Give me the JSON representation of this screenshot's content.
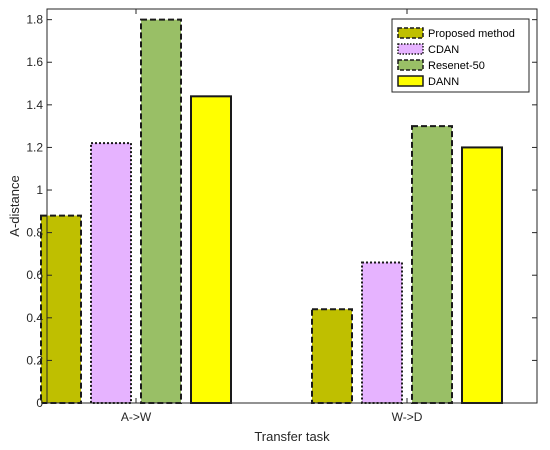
{
  "chart_data": {
    "type": "bar",
    "xlabel": "Transfer task",
    "ylabel": "A-distance",
    "categories": [
      "A->W",
      "W->D"
    ],
    "series": [
      {
        "name": "Proposed method",
        "values": [
          0.88,
          0.44
        ],
        "color": "#bfbf00",
        "border": "dashed"
      },
      {
        "name": "CDAN",
        "values": [
          1.22,
          0.66
        ],
        "color": "#e6b3ff",
        "border": "dotted"
      },
      {
        "name": "Resenet-50",
        "values": [
          1.8,
          1.3
        ],
        "color": "#99bf66",
        "border": "dashed"
      },
      {
        "name": "DANN",
        "values": [
          1.44,
          1.2
        ],
        "color": "#ffff00",
        "border": "solid"
      }
    ],
    "ylim": [
      0,
      1.85
    ],
    "yticks": [
      "0",
      "0.2",
      "0.4",
      "0.6",
      "0.8",
      "1",
      "1.2",
      "1.4",
      "1.6",
      "1.8"
    ],
    "grid": false,
    "legend_position": "top-right"
  }
}
